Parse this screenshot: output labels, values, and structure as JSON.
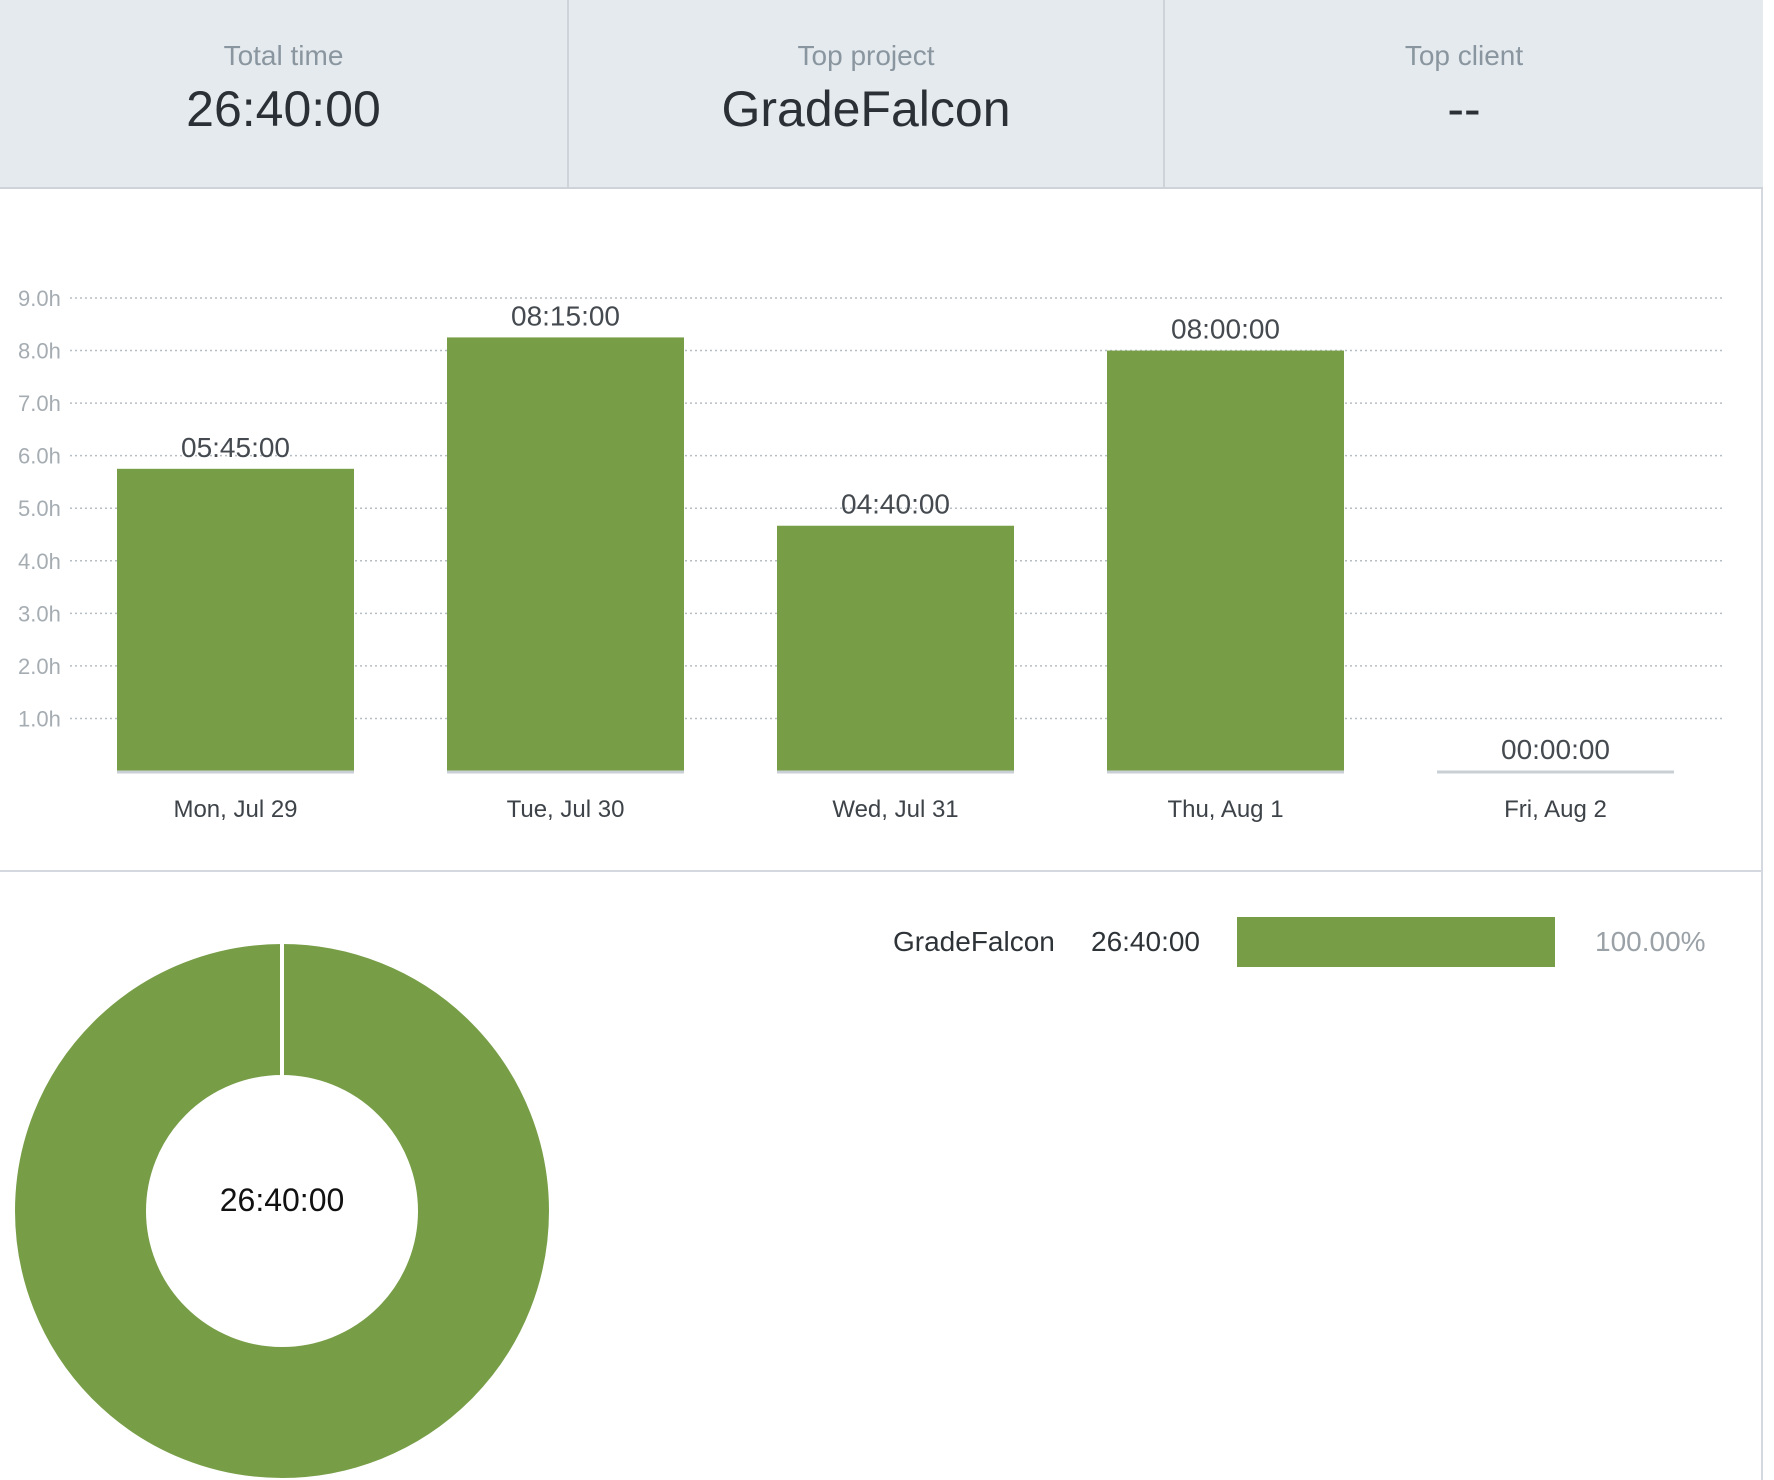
{
  "summary": {
    "total_time": {
      "label": "Total time",
      "value": "26:40:00"
    },
    "top_project": {
      "label": "Top project",
      "value": "GradeFalcon"
    },
    "top_client": {
      "label": "Top client",
      "value": "--"
    }
  },
  "colors": {
    "bar": "#779e47",
    "empty_bar": "#c9d0d5",
    "grid": "#b7bec3",
    "header_bg": "#e5eaee"
  },
  "chart_data": [
    {
      "type": "bar",
      "categories": [
        "Mon, Jul 29",
        "Tue, Jul 30",
        "Wed, Jul 31",
        "Thu, Aug 1",
        "Fri, Aug 2"
      ],
      "values": [
        5.75,
        8.25,
        4.6667,
        8.0,
        0.0
      ],
      "data_labels": [
        "05:45:00",
        "08:15:00",
        "04:40:00",
        "08:00:00",
        "00:00:00"
      ],
      "y_ticks": [
        "1.0h",
        "2.0h",
        "3.0h",
        "4.0h",
        "5.0h",
        "6.0h",
        "7.0h",
        "8.0h",
        "9.0h"
      ],
      "ylim": [
        0,
        9
      ],
      "grid": true,
      "title": "",
      "xlabel": "",
      "ylabel": ""
    },
    {
      "type": "pie",
      "labels": [
        "GradeFalcon"
      ],
      "values": [
        100.0
      ],
      "center_label": "26:40:00"
    }
  ],
  "legend": {
    "items": [
      {
        "name": "GradeFalcon",
        "time": "26:40:00",
        "percent": "100.00%",
        "fraction": 1.0
      }
    ]
  }
}
